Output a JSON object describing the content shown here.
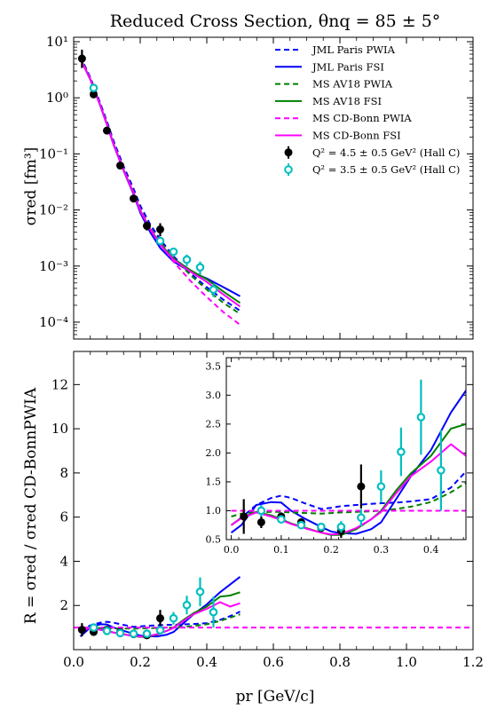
{
  "chart_data": [
    {
      "panel": "top",
      "type": "line",
      "title": "Reduced Cross Section, θnq = 85 ± 5°",
      "ylabel": "σred [fm³]",
      "yscale": "log",
      "xlim": [
        0.0,
        1.2
      ],
      "ylim": [
        5e-05,
        12
      ],
      "y_tick_labels": [
        "10¹",
        "10⁰",
        "10⁻¹",
        "10⁻²",
        "10⁻³",
        "10⁻⁴"
      ],
      "y_tick_values": [
        10,
        1,
        0.1,
        0.01,
        0.001,
        0.0001
      ],
      "legend_position": "top-right",
      "series": [
        {
          "name": "JML Paris PWIA",
          "color": "#0000ff",
          "style": "dashed",
          "x": [
            0.02,
            0.05,
            0.08,
            0.1,
            0.12,
            0.15,
            0.18,
            0.2,
            0.23,
            0.26,
            0.3,
            0.35,
            0.4,
            0.45,
            0.5
          ],
          "y": [
            5.5,
            2.3,
            0.8,
            0.38,
            0.17,
            0.06,
            0.024,
            0.012,
            0.0055,
            0.003,
            0.0015,
            0.00075,
            0.00042,
            0.00025,
            0.00016
          ]
        },
        {
          "name": "JML Paris FSI",
          "color": "#0000ff",
          "style": "solid",
          "x": [
            0.02,
            0.05,
            0.08,
            0.1,
            0.12,
            0.15,
            0.18,
            0.2,
            0.23,
            0.26,
            0.3,
            0.35,
            0.4,
            0.45,
            0.5
          ],
          "y": [
            5.0,
            2.1,
            0.72,
            0.33,
            0.145,
            0.05,
            0.019,
            0.009,
            0.004,
            0.0021,
            0.0012,
            0.0008,
            0.0006,
            0.00042,
            0.00029
          ]
        },
        {
          "name": "MS AV18 PWIA",
          "color": "#008000",
          "style": "dashed",
          "x": [
            0.02,
            0.05,
            0.08,
            0.1,
            0.12,
            0.15,
            0.18,
            0.2,
            0.23,
            0.26,
            0.3,
            0.35,
            0.4,
            0.45,
            0.5
          ],
          "y": [
            5.3,
            2.2,
            0.76,
            0.35,
            0.155,
            0.054,
            0.021,
            0.0105,
            0.0049,
            0.0027,
            0.0014,
            0.0007,
            0.00038,
            0.00022,
            0.00014
          ]
        },
        {
          "name": "MS AV18 FSI",
          "color": "#008000",
          "style": "solid",
          "x": [
            0.02,
            0.05,
            0.08,
            0.1,
            0.12,
            0.15,
            0.18,
            0.2,
            0.23,
            0.26,
            0.3,
            0.35,
            0.4,
            0.45,
            0.5
          ],
          "y": [
            5.1,
            2.15,
            0.74,
            0.34,
            0.15,
            0.052,
            0.02,
            0.0098,
            0.0046,
            0.0025,
            0.00135,
            0.00085,
            0.00058,
            0.00035,
            0.00022
          ]
        },
        {
          "name": "MS CD-Bonn PWIA",
          "color": "#ff00ff",
          "style": "dashed",
          "x": [
            0.02,
            0.05,
            0.08,
            0.1,
            0.12,
            0.15,
            0.18,
            0.2,
            0.23,
            0.26,
            0.3,
            0.35,
            0.4,
            0.45,
            0.5
          ],
          "y": [
            5.2,
            2.18,
            0.75,
            0.345,
            0.152,
            0.053,
            0.0205,
            0.0102,
            0.0047,
            0.0025,
            0.0012,
            0.00055,
            0.00028,
            0.00015,
            9e-05
          ]
        },
        {
          "name": "MS CD-Bonn FSI",
          "color": "#ff00ff",
          "style": "solid",
          "x": [
            0.02,
            0.05,
            0.08,
            0.1,
            0.12,
            0.15,
            0.18,
            0.2,
            0.23,
            0.26,
            0.3,
            0.35,
            0.4,
            0.45,
            0.5
          ],
          "y": [
            5.0,
            2.12,
            0.73,
            0.335,
            0.148,
            0.051,
            0.0198,
            0.0096,
            0.0045,
            0.0024,
            0.0013,
            0.0008,
            0.00052,
            0.00031,
            0.00019
          ]
        },
        {
          "name": "Q² = 4.5 ± 0.5 GeV² (Hall C)",
          "color": "#000000",
          "marker": "filled-circle",
          "x": [
            0.025,
            0.06,
            0.1,
            0.14,
            0.18,
            0.22,
            0.26
          ],
          "y": [
            5.0,
            1.15,
            0.26,
            0.062,
            0.016,
            0.0052,
            0.0045
          ],
          "err_hi": [
            2.2,
            0.2,
            0.04,
            0.008,
            0.0022,
            0.001,
            0.0013
          ],
          "err_lo": [
            1.6,
            0.15,
            0.035,
            0.007,
            0.002,
            0.0009,
            0.0011
          ]
        },
        {
          "name": "Q² = 3.5 ± 0.5 GeV² (Hall C)",
          "color": "#00bfbf",
          "marker": "open-circle",
          "x": [
            0.06,
            0.26,
            0.3,
            0.34,
            0.38,
            0.42
          ],
          "y": [
            1.5,
            0.0028,
            0.0018,
            0.0013,
            0.00095,
            0.00038
          ],
          "err_hi": [
            0.1,
            0.0004,
            0.0003,
            0.0003,
            0.00025,
            0.0001
          ],
          "err_lo": [
            0.1,
            0.0004,
            0.0003,
            0.0003,
            0.00025,
            0.0001
          ]
        }
      ]
    },
    {
      "panel": "bottom",
      "type": "line",
      "xlabel": "pr [GeV/c]",
      "ylabel": "R = σred / σred CD-BonnPWIA",
      "xlim": [
        0.0,
        1.2
      ],
      "ylim": [
        0.0,
        13.5
      ],
      "x_tick_labels": [
        "0.0",
        "0.2",
        "0.4",
        "0.6",
        "0.8",
        "1.0",
        "1.2"
      ],
      "x_tick_values": [
        0.0,
        0.2,
        0.4,
        0.6,
        0.8,
        1.0,
        1.2
      ],
      "y_tick_labels": [
        "2",
        "4",
        "6",
        "8",
        "10",
        "12"
      ],
      "y_tick_values": [
        2,
        4,
        6,
        8,
        10,
        12
      ],
      "series": [
        {
          "name": "JML Paris PWIA",
          "color": "#0000ff",
          "style": "dashed",
          "x": [
            0.02,
            0.05,
            0.08,
            0.1,
            0.12,
            0.15,
            0.18,
            0.2,
            0.22,
            0.25,
            0.28,
            0.3,
            0.33,
            0.36,
            0.4,
            0.44,
            0.47,
            0.5
          ],
          "y": [
            0.85,
            1.1,
            1.22,
            1.26,
            1.22,
            1.12,
            1.03,
            1.05,
            1.08,
            1.1,
            1.12,
            1.13,
            1.14,
            1.16,
            1.2,
            1.35,
            1.52,
            1.72
          ]
        },
        {
          "name": "JML Paris FSI",
          "color": "#0000ff",
          "style": "solid",
          "x": [
            0.02,
            0.05,
            0.08,
            0.1,
            0.12,
            0.15,
            0.18,
            0.2,
            0.22,
            0.25,
            0.28,
            0.3,
            0.33,
            0.36,
            0.4,
            0.44,
            0.47,
            0.5
          ],
          "y": [
            0.6,
            1.0,
            1.15,
            1.14,
            1.0,
            0.85,
            0.72,
            0.64,
            0.61,
            0.6,
            0.68,
            0.8,
            1.2,
            1.6,
            2.05,
            2.6,
            2.95,
            3.3
          ]
        },
        {
          "name": "MS AV18 PWIA",
          "color": "#008000",
          "style": "dashed",
          "x": [
            0.02,
            0.05,
            0.08,
            0.1,
            0.12,
            0.15,
            0.18,
            0.2,
            0.22,
            0.25,
            0.28,
            0.3,
            0.33,
            0.36,
            0.4,
            0.44,
            0.47,
            0.5
          ],
          "y": [
            0.95,
            0.97,
            0.98,
            0.98,
            0.97,
            0.96,
            0.95,
            0.96,
            0.97,
            0.98,
            0.99,
            1.0,
            1.03,
            1.07,
            1.15,
            1.3,
            1.45,
            1.6
          ]
        },
        {
          "name": "MS AV18 FSI",
          "color": "#008000",
          "style": "solid",
          "x": [
            0.02,
            0.05,
            0.08,
            0.1,
            0.12,
            0.15,
            0.18,
            0.2,
            0.22,
            0.25,
            0.28,
            0.3,
            0.33,
            0.36,
            0.4,
            0.44,
            0.47,
            0.5
          ],
          "y": [
            0.9,
            0.98,
            0.92,
            0.85,
            0.78,
            0.7,
            0.62,
            0.58,
            0.58,
            0.68,
            0.85,
            1.0,
            1.35,
            1.65,
            1.95,
            2.4,
            2.45,
            2.6
          ]
        },
        {
          "name": "MS CD-Bonn PWIA",
          "color": "#ff00ff",
          "style": "dashed",
          "x": [
            0.0,
            1.2
          ],
          "y": [
            1.0,
            1.0
          ]
        },
        {
          "name": "MS CD-Bonn FSI",
          "color": "#ff00ff",
          "style": "solid",
          "x": [
            0.02,
            0.05,
            0.08,
            0.1,
            0.12,
            0.15,
            0.18,
            0.2,
            0.22,
            0.25,
            0.28,
            0.3,
            0.33,
            0.36,
            0.4,
            0.44,
            0.47,
            0.5
          ],
          "y": [
            0.88,
            0.97,
            0.9,
            0.84,
            0.77,
            0.69,
            0.62,
            0.59,
            0.6,
            0.7,
            0.85,
            0.98,
            1.3,
            1.6,
            1.85,
            2.15,
            1.95,
            2.1
          ]
        },
        {
          "name": "Q² = 4.5 ± 0.5 GeV² (Hall C)",
          "color": "#000000",
          "marker": "filled-circle",
          "x": [
            0.025,
            0.06,
            0.1,
            0.14,
            0.18,
            0.22,
            0.26
          ],
          "y": [
            0.9,
            0.8,
            0.9,
            0.8,
            0.7,
            0.65,
            1.42
          ],
          "err": [
            0.3,
            0.1,
            0.07,
            0.07,
            0.07,
            0.12,
            0.38
          ]
        },
        {
          "name": "Q² = 3.5 ± 0.5 GeV² (Hall C)",
          "color": "#00bfbf",
          "marker": "open-circle",
          "x": [
            0.06,
            0.1,
            0.14,
            0.18,
            0.22,
            0.26,
            0.3,
            0.34,
            0.38,
            0.42
          ],
          "y": [
            1.0,
            0.85,
            0.75,
            0.72,
            0.72,
            0.88,
            1.42,
            2.02,
            2.62,
            1.7
          ],
          "err": [
            0.1,
            0.05,
            0.06,
            0.07,
            0.1,
            0.15,
            0.28,
            0.42,
            0.65,
            0.7
          ]
        }
      ]
    },
    {
      "panel": "inset",
      "type": "line",
      "xlim": [
        -0.01,
        0.47
      ],
      "ylim": [
        0.5,
        3.65
      ],
      "x_tick_labels": [
        "0.0",
        "0.1",
        "0.2",
        "0.3",
        "0.4"
      ],
      "x_tick_values": [
        0.0,
        0.1,
        0.2,
        0.3,
        0.4
      ],
      "y_tick_labels": [
        "0.5",
        "1.0",
        "1.5",
        "2.0",
        "2.5",
        "3.0",
        "3.5"
      ],
      "y_tick_values": [
        0.5,
        1.0,
        1.5,
        2.0,
        2.5,
        3.0,
        3.5
      ],
      "series": [
        {
          "name": "JML Paris PWIA",
          "color": "#0000ff",
          "style": "dashed",
          "x": [
            0.0,
            0.02,
            0.05,
            0.08,
            0.1,
            0.12,
            0.15,
            0.18,
            0.2,
            0.22,
            0.25,
            0.28,
            0.3,
            0.33,
            0.36,
            0.4,
            0.44,
            0.47
          ],
          "y": [
            0.75,
            0.88,
            1.1,
            1.22,
            1.26,
            1.22,
            1.12,
            1.03,
            1.05,
            1.08,
            1.1,
            1.12,
            1.13,
            1.14,
            1.16,
            1.2,
            1.4,
            1.68
          ]
        },
        {
          "name": "JML Paris FSI",
          "color": "#0000ff",
          "style": "solid",
          "x": [
            0.0,
            0.02,
            0.05,
            0.08,
            0.1,
            0.12,
            0.15,
            0.18,
            0.2,
            0.22,
            0.25,
            0.28,
            0.3,
            0.33,
            0.36,
            0.4,
            0.44,
            0.47
          ],
          "y": [
            0.62,
            0.75,
            1.1,
            1.15,
            1.14,
            1.0,
            0.85,
            0.72,
            0.64,
            0.61,
            0.6,
            0.68,
            0.8,
            1.2,
            1.6,
            2.05,
            2.7,
            3.08
          ]
        },
        {
          "name": "MS AV18 PWIA",
          "color": "#008000",
          "style": "dashed",
          "x": [
            0.0,
            0.02,
            0.05,
            0.08,
            0.1,
            0.12,
            0.15,
            0.18,
            0.2,
            0.22,
            0.25,
            0.28,
            0.3,
            0.33,
            0.36,
            0.4,
            0.44,
            0.47
          ],
          "y": [
            0.9,
            0.95,
            0.97,
            0.98,
            0.98,
            0.97,
            0.96,
            0.95,
            0.96,
            0.97,
            0.98,
            0.99,
            1.0,
            1.03,
            1.07,
            1.15,
            1.32,
            1.48
          ]
        },
        {
          "name": "MS AV18 FSI",
          "color": "#008000",
          "style": "solid",
          "x": [
            0.0,
            0.02,
            0.05,
            0.08,
            0.1,
            0.12,
            0.15,
            0.18,
            0.2,
            0.22,
            0.25,
            0.28,
            0.3,
            0.33,
            0.36,
            0.4,
            0.44,
            0.47
          ],
          "y": [
            0.75,
            0.88,
            0.98,
            0.92,
            0.85,
            0.78,
            0.7,
            0.62,
            0.58,
            0.58,
            0.68,
            0.85,
            1.0,
            1.35,
            1.65,
            1.95,
            2.42,
            2.5
          ]
        },
        {
          "name": "MS CD-Bonn PWIA",
          "color": "#ff00ff",
          "style": "dashed",
          "x": [
            0.0,
            0.47
          ],
          "y": [
            1.0,
            1.0
          ]
        },
        {
          "name": "MS CD-Bonn FSI",
          "color": "#ff00ff",
          "style": "solid",
          "x": [
            0.0,
            0.02,
            0.05,
            0.08,
            0.1,
            0.12,
            0.15,
            0.18,
            0.2,
            0.22,
            0.25,
            0.28,
            0.3,
            0.33,
            0.36,
            0.4,
            0.44,
            0.47
          ],
          "y": [
            0.75,
            0.87,
            0.97,
            0.9,
            0.84,
            0.77,
            0.69,
            0.62,
            0.59,
            0.6,
            0.7,
            0.85,
            0.98,
            1.3,
            1.6,
            1.85,
            2.15,
            1.95
          ]
        },
        {
          "name": "Q² = 4.5 ± 0.5 GeV² (Hall C)",
          "color": "#000000",
          "marker": "filled-circle",
          "x": [
            0.025,
            0.06,
            0.1,
            0.14,
            0.18,
            0.22,
            0.26
          ],
          "y": [
            0.9,
            0.8,
            0.9,
            0.8,
            0.7,
            0.65,
            1.42
          ],
          "err": [
            0.3,
            0.1,
            0.07,
            0.07,
            0.07,
            0.12,
            0.38
          ]
        },
        {
          "name": "Q² = 3.5 ± 0.5 GeV² (Hall C)",
          "color": "#00bfbf",
          "marker": "open-circle",
          "x": [
            0.06,
            0.1,
            0.14,
            0.18,
            0.22,
            0.26,
            0.3,
            0.34,
            0.38,
            0.42
          ],
          "y": [
            1.0,
            0.85,
            0.75,
            0.72,
            0.72,
            0.88,
            1.42,
            2.02,
            2.62,
            1.7
          ],
          "err": [
            0.1,
            0.05,
            0.06,
            0.07,
            0.1,
            0.15,
            0.28,
            0.42,
            0.65,
            0.7
          ]
        }
      ]
    }
  ]
}
